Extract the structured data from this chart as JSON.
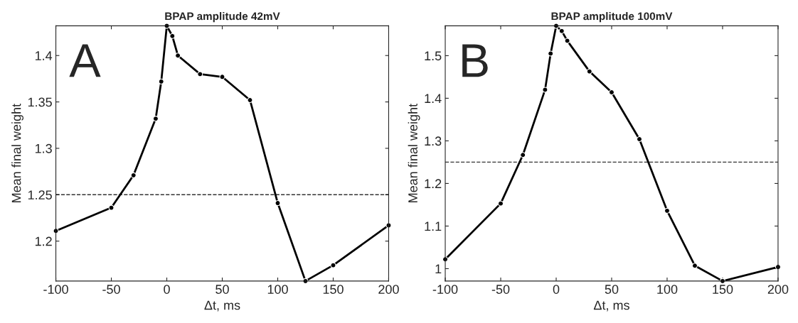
{
  "chart_data": [
    {
      "type": "line",
      "title": "BPAP amplitude 42mV",
      "xlabel": "Δt, ms",
      "ylabel": "Mean final weight",
      "annotations": [
        "A"
      ],
      "x": [
        -100,
        -50,
        -30,
        -10,
        -5,
        0,
        5,
        10,
        30,
        50,
        75,
        100,
        125,
        150,
        200
      ],
      "series": [
        {
          "color": "#000000",
          "values": [
            1.211,
            1.236,
            1.271,
            1.332,
            1.372,
            1.432,
            1.421,
            1.4,
            1.38,
            1.377,
            1.352,
            1.241,
            1.157,
            1.174,
            1.217
          ]
        }
      ],
      "xlim": [
        -100,
        200
      ],
      "xticks": [
        -100,
        -50,
        0,
        50,
        100,
        150,
        200
      ],
      "ylim": [
        1.157,
        1.432
      ],
      "yticks": [
        1.2,
        1.25,
        1.3,
        1.35,
        1.4
      ],
      "ref_lines": [
        {
          "axis": "y",
          "value": 1.25,
          "color": "#000000",
          "line_style": "dashed"
        }
      ],
      "marker": "circle",
      "line_style": "solid",
      "grid": false
    },
    {
      "type": "line",
      "title": "BPAP amplitude 100mV",
      "xlabel": "Δt, ms",
      "ylabel": "Mean final weight",
      "annotations": [
        "B"
      ],
      "x": [
        -100,
        -50,
        -30,
        -10,
        -5,
        0,
        5,
        10,
        30,
        50,
        75,
        100,
        125,
        150,
        200
      ],
      "series": [
        {
          "color": "#000000",
          "values": [
            1.022,
            1.153,
            1.267,
            1.42,
            1.505,
            1.57,
            1.558,
            1.535,
            1.463,
            1.414,
            1.304,
            1.136,
            1.007,
            0.971,
            1.004
          ]
        }
      ],
      "xlim": [
        -100,
        200
      ],
      "xticks": [
        -100,
        -50,
        0,
        50,
        100,
        150,
        200
      ],
      "ylim": [
        0.971,
        1.57
      ],
      "yticks": [
        1,
        1.1,
        1.2,
        1.3,
        1.4,
        1.5
      ],
      "ref_lines": [
        {
          "axis": "y",
          "value": 1.25,
          "color": "#000000",
          "line_style": "dashed"
        }
      ],
      "marker": "circle",
      "line_style": "solid",
      "grid": false
    }
  ]
}
